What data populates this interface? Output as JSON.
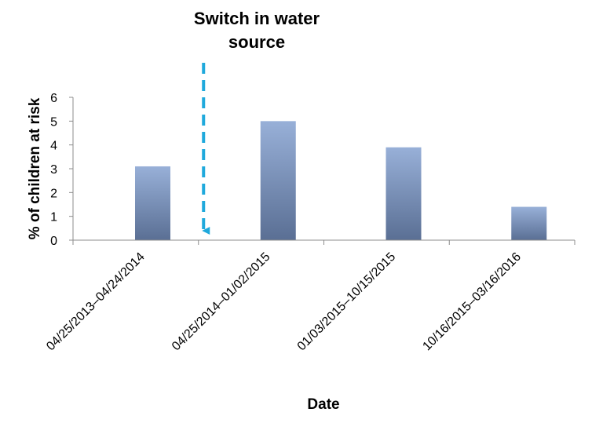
{
  "chart_data": {
    "type": "bar",
    "title": "",
    "xlabel": "Date",
    "ylabel": "% of children at risk",
    "ylim": [
      0,
      6
    ],
    "yticks": [
      0,
      1,
      2,
      3,
      4,
      5,
      6
    ],
    "grid": false,
    "legend": "none",
    "categories": [
      "04/25/2013–04/24/2014",
      "04/25/2014–01/02/2015",
      "01/03/2015–10/15/2015",
      "10/16/2015–03/16/2016"
    ],
    "values": [
      3.1,
      5.0,
      3.9,
      1.4
    ],
    "annotation": {
      "text_lines": [
        "Switch in water",
        "source"
      ],
      "position": "at start of second category",
      "style": "dashed arrow pointing down"
    },
    "colors": {
      "bar_top": "#98b0d8",
      "bar_bottom": "#5a6f94",
      "arrow": "#1fa9dc",
      "axis": "#8c8c8c"
    }
  }
}
